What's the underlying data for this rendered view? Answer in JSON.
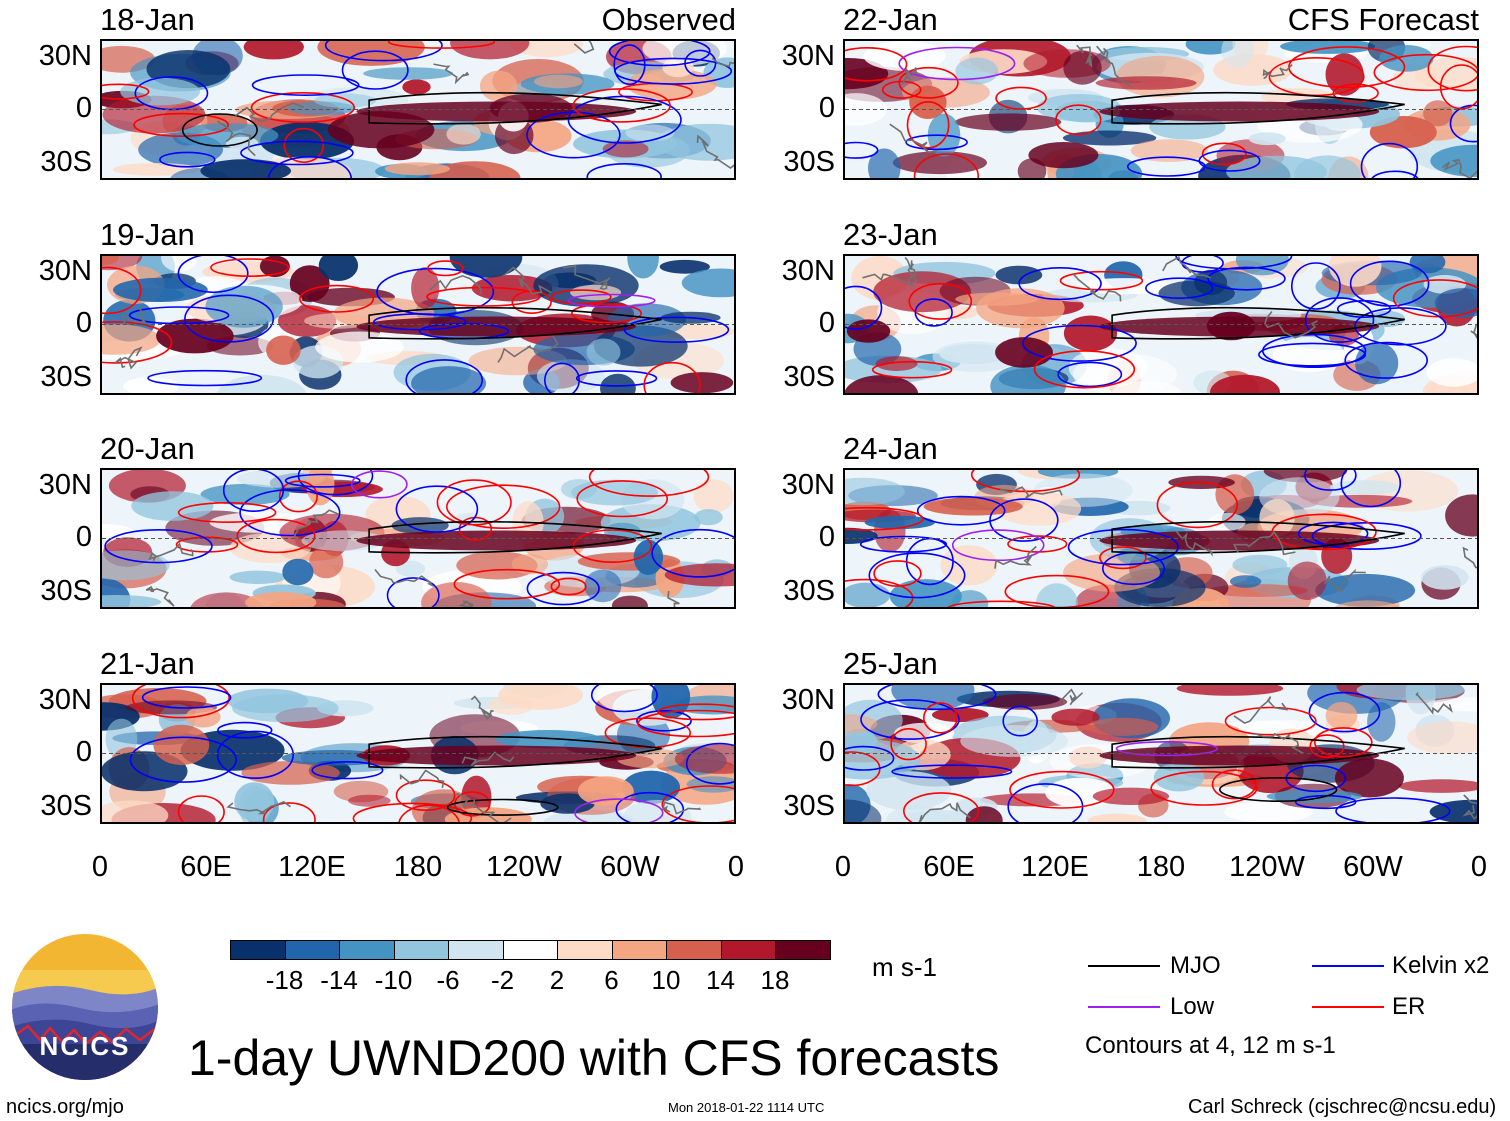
{
  "title": "1-day UWND200 with CFS forecasts",
  "observed_label": "Observed",
  "forecast_label": "CFS Forecast",
  "logo_text": "NCICS",
  "footer": {
    "url": "ncics.org/mjo",
    "timestamp": "Mon 2018-01-22 1114 UTC",
    "author": "Carl Schreck (cjschrec@ncsu.edu)"
  },
  "units": "m s-1",
  "contour_note": "Contours at 4, 12 m s-1",
  "legend": [
    {
      "name": "MJO",
      "color": "#000000"
    },
    {
      "name": "Kelvin x2",
      "color": "#0000ff"
    },
    {
      "name": "Low",
      "color": "#a020f0"
    },
    {
      "name": "ER",
      "color": "#ff0000"
    }
  ],
  "chart_data": {
    "type": "heatmap",
    "variable": "200-hPa zonal wind anomaly",
    "panels": [
      {
        "date": "18-Jan",
        "source": "Observed"
      },
      {
        "date": "19-Jan",
        "source": "Observed"
      },
      {
        "date": "20-Jan",
        "source": "Observed"
      },
      {
        "date": "21-Jan",
        "source": "Observed"
      },
      {
        "date": "22-Jan",
        "source": "CFS Forecast"
      },
      {
        "date": "23-Jan",
        "source": "CFS Forecast"
      },
      {
        "date": "24-Jan",
        "source": "CFS Forecast"
      },
      {
        "date": "25-Jan",
        "source": "CFS Forecast"
      }
    ],
    "y_ticks": [
      "30N",
      "0",
      "30S"
    ],
    "x_ticks": [
      "0",
      "60E",
      "120E",
      "180",
      "120W",
      "60W",
      "0"
    ],
    "colorbar_ticks": [
      "-18",
      "-14",
      "-10",
      "-6",
      "-2",
      "2",
      "6",
      "10",
      "14",
      "18"
    ],
    "colorbar_colors": [
      "#08306b",
      "#2166ac",
      "#4393c3",
      "#92c5de",
      "#d1e5f0",
      "#ffffff",
      "#fddbc7",
      "#f4a582",
      "#d6604d",
      "#b2182b",
      "#67001f"
    ]
  }
}
